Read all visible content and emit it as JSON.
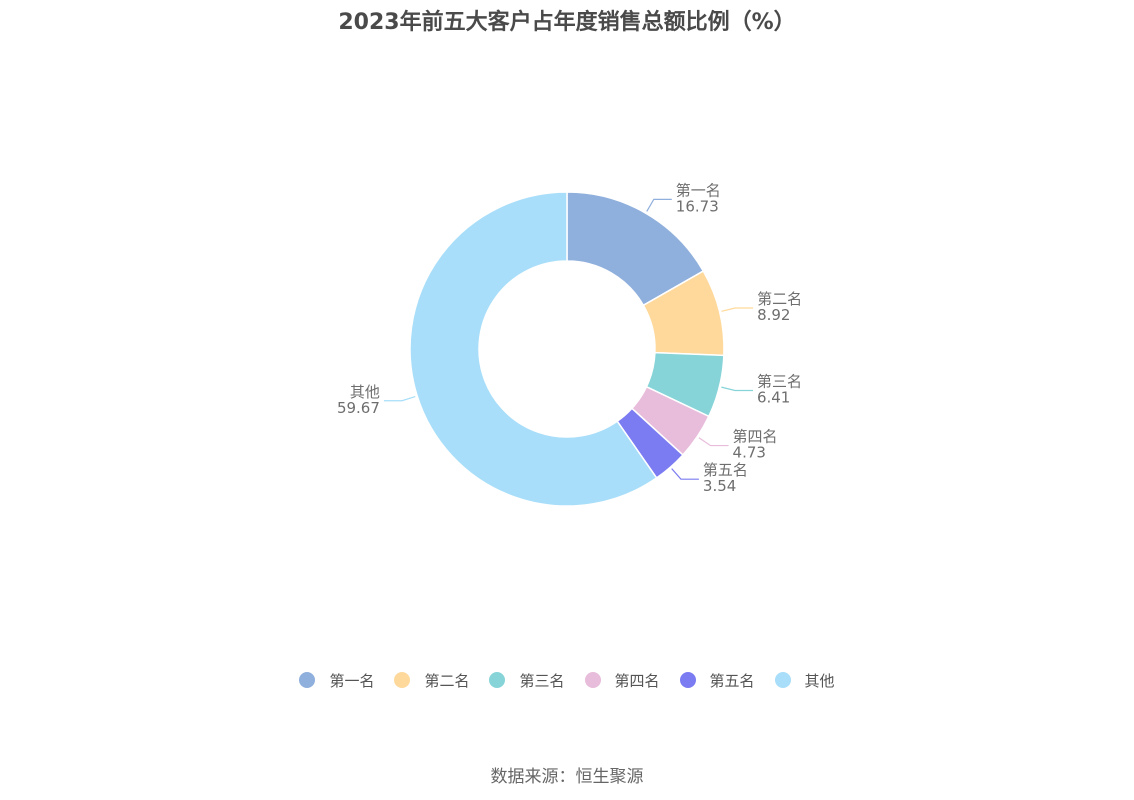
{
  "title": "2023年前五大客户占年度销售总额比例（%）",
  "source": "数据来源：恒生聚源",
  "chart_data": {
    "type": "pie",
    "donut": true,
    "title": "2023年前五大客户占年度销售总额比例（%）",
    "categories": [
      "第一名",
      "第二名",
      "第三名",
      "第四名",
      "第五名",
      "其他"
    ],
    "values": [
      16.73,
      8.92,
      6.41,
      4.73,
      3.54,
      59.67
    ],
    "value_labels": [
      "16.73",
      "8.92",
      "6.41",
      "4.73",
      "3.54",
      "59.67"
    ],
    "colors": [
      "#8fafdc",
      "#ffd99b",
      "#86d4d8",
      "#e8bcdb",
      "#7b7bf2",
      "#a8def9"
    ],
    "legend_position": "bottom"
  }
}
